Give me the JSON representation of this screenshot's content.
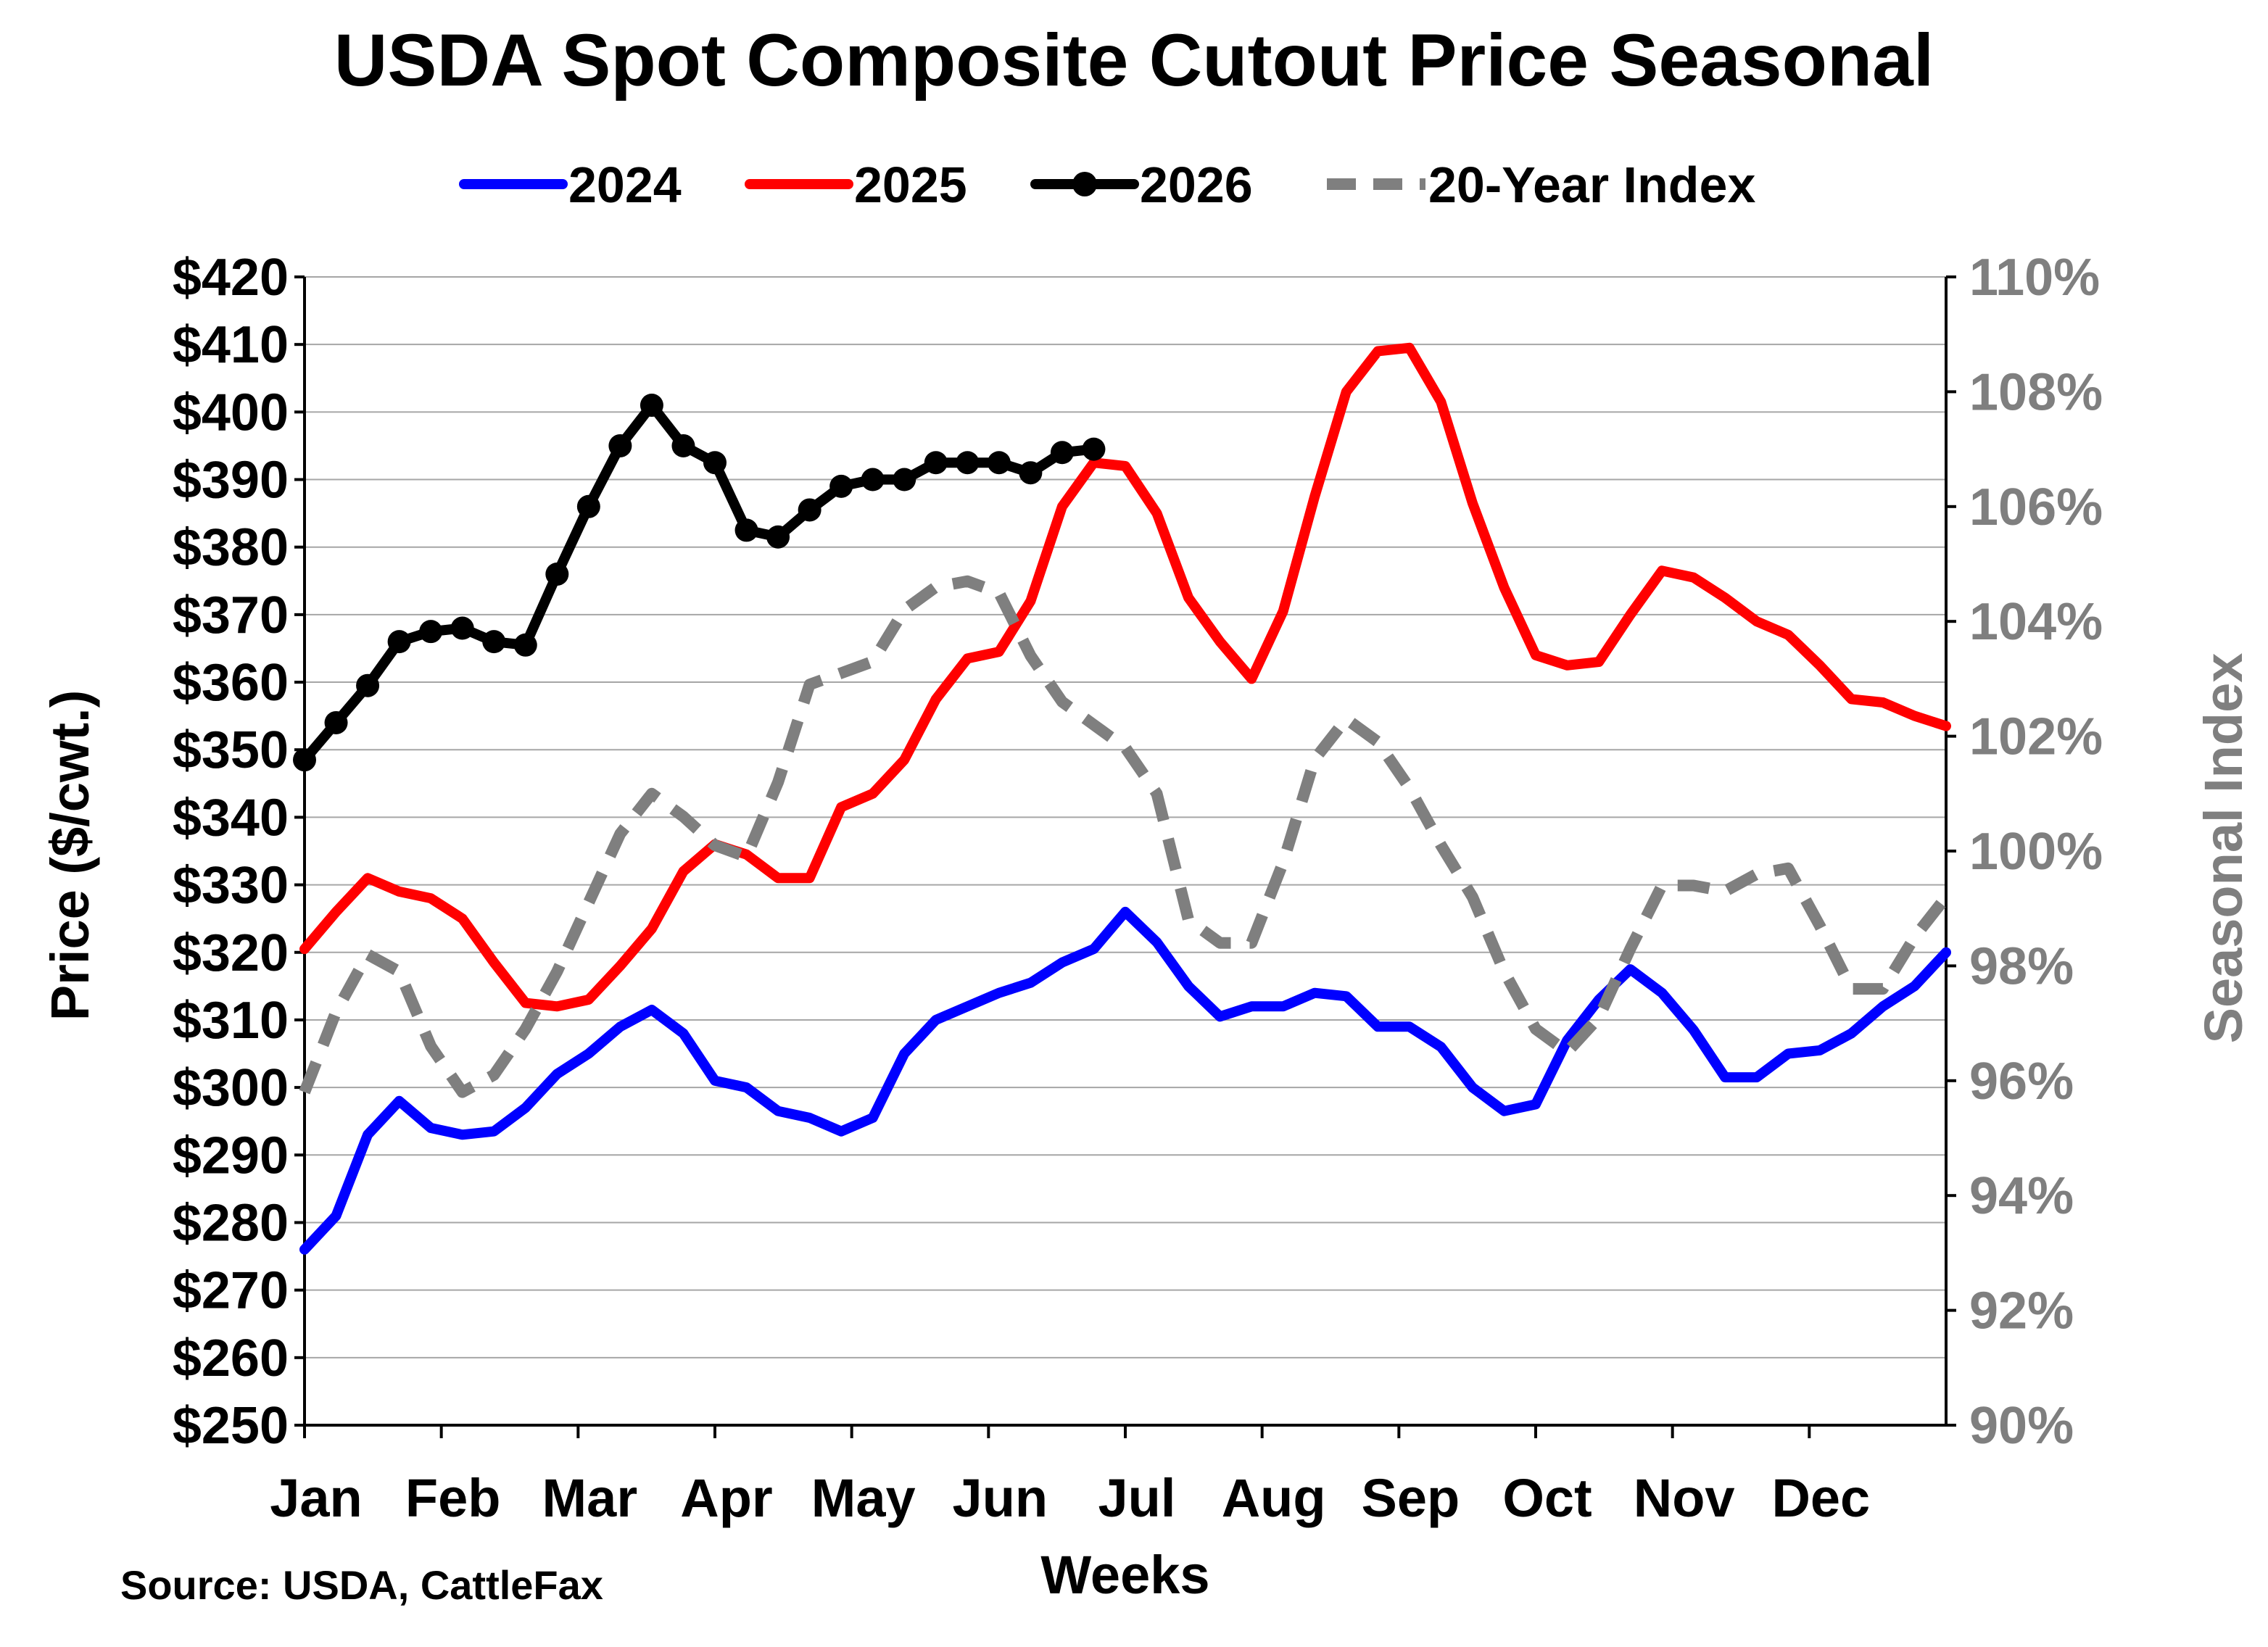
{
  "chart_data": {
    "type": "line",
    "title": "USDA Spot Composite Cutout Price Seasonal",
    "xlabel": "Weeks",
    "ylabel": "Price ($/cwt.)",
    "y2label": "Seasonal Index",
    "source": "Source: USDA, CattleFax",
    "months": [
      "Jan",
      "Feb",
      "Mar",
      "Apr",
      "May",
      "Jun",
      "Jul",
      "Aug",
      "Sep",
      "Oct",
      "Nov",
      "Dec"
    ],
    "xlim": [
      1,
      53
    ],
    "ylim": [
      250,
      420
    ],
    "y_ticks": [
      250,
      260,
      270,
      280,
      290,
      300,
      310,
      320,
      330,
      340,
      350,
      360,
      370,
      380,
      390,
      400,
      410,
      420
    ],
    "y_tick_labels": [
      "$250",
      "$260",
      "$270",
      "$280",
      "$290",
      "$300",
      "$310",
      "$320",
      "$330",
      "$340",
      "$350",
      "$360",
      "$370",
      "$380",
      "$390",
      "$400",
      "$410",
      "$420"
    ],
    "y2lim": [
      90,
      110
    ],
    "y2_ticks": [
      90,
      92,
      94,
      96,
      98,
      100,
      102,
      104,
      106,
      108,
      110
    ],
    "y2_tick_labels": [
      "90%",
      "92%",
      "94%",
      "96%",
      "98%",
      "100%",
      "102%",
      "104%",
      "106%",
      "108%",
      "110%"
    ],
    "grid": true,
    "legend_position": "top",
    "series": [
      {
        "name": "2024",
        "color": "#0000ff",
        "style": "solid",
        "axis": "left",
        "markers": false,
        "week": [
          1,
          2,
          3,
          4,
          5,
          6,
          7,
          8,
          9,
          10,
          11,
          12,
          13,
          14,
          15,
          16,
          17,
          18,
          19,
          20,
          21,
          22,
          23,
          24,
          25,
          26,
          27,
          28,
          29,
          30,
          31,
          32,
          33,
          34,
          35,
          36,
          37,
          38,
          39,
          40,
          41,
          42,
          43,
          44,
          45,
          46,
          47,
          48,
          49,
          50,
          51,
          52,
          53
        ],
        "values": [
          276,
          281,
          293,
          298,
          294,
          293,
          293.5,
          297,
          302,
          305,
          309,
          311.5,
          308,
          301,
          300,
          296.5,
          295.5,
          293.5,
          295.5,
          305,
          310,
          312,
          314,
          315.5,
          318.5,
          320.5,
          326,
          321.5,
          315,
          310.5,
          312,
          312,
          314,
          313.5,
          309,
          309,
          306,
          300,
          296.5,
          297.5,
          307,
          313,
          317.5,
          314,
          308.5,
          301.5,
          301.5,
          305,
          305.5,
          308,
          312,
          315,
          320
        ]
      },
      {
        "name": "2025",
        "color": "#ff0000",
        "style": "solid",
        "axis": "left",
        "markers": false,
        "week": [
          1,
          2,
          3,
          4,
          5,
          6,
          7,
          8,
          9,
          10,
          11,
          12,
          13,
          14,
          15,
          16,
          17,
          18,
          19,
          20,
          21,
          22,
          23,
          24,
          25,
          26,
          27,
          28,
          29,
          30,
          31,
          32,
          33,
          34,
          35,
          36,
          37,
          38,
          39,
          40,
          41,
          42,
          43,
          44,
          45,
          46,
          47,
          48,
          49,
          50,
          51,
          52,
          53
        ],
        "values": [
          320.5,
          326,
          331,
          329,
          328,
          325,
          318.5,
          312.5,
          312,
          313,
          318,
          323.5,
          332,
          336,
          334.5,
          331,
          331,
          341.5,
          343.5,
          348.5,
          357.5,
          363.5,
          364.5,
          372,
          386,
          392.5,
          392,
          385,
          372.5,
          366,
          360.5,
          370.5,
          387.5,
          403,
          409,
          409.5,
          401.5,
          386.5,
          374,
          364,
          362.5,
          363,
          370,
          376.5,
          375.5,
          372.5,
          369,
          367,
          362.5,
          357.5,
          357,
          355,
          353.5
        ]
      },
      {
        "name": "2026",
        "color": "#000000",
        "style": "solid",
        "axis": "left",
        "markers": true,
        "week": [
          1,
          2,
          3,
          4,
          5,
          6,
          7,
          8,
          9,
          10,
          11,
          12,
          13,
          14,
          15,
          16,
          17,
          18,
          19,
          20,
          21,
          22,
          23,
          24,
          25,
          26
        ],
        "values": [
          348.5,
          354,
          359.5,
          366,
          367.5,
          368,
          366,
          365.5,
          376,
          386,
          395,
          401,
          395,
          392.5,
          382.5,
          381.5,
          385.5,
          389,
          390,
          390,
          392.5,
          392.5,
          392.5,
          391,
          394,
          394.5
        ]
      },
      {
        "name": "20-Year Index",
        "color": "#7f7f7f",
        "style": "dashed",
        "axis": "right",
        "markers": false,
        "week": [
          1,
          2,
          3,
          4,
          5,
          6,
          7,
          8,
          9,
          10,
          11,
          12,
          13,
          14,
          15,
          16,
          17,
          18,
          19,
          20,
          21,
          22,
          23,
          24,
          25,
          26,
          27,
          28,
          29,
          30,
          31,
          32,
          33,
          34,
          35,
          36,
          37,
          38,
          39,
          40,
          41,
          42,
          43,
          44,
          45,
          46,
          47,
          48,
          49,
          50,
          51,
          52,
          53
        ],
        "values": [
          95.8,
          97.2,
          98.2,
          97.9,
          96.6,
          95.8,
          96.1,
          96.9,
          97.9,
          99.1,
          100.3,
          101,
          100.6,
          100.1,
          99.9,
          101.2,
          102.9,
          103.1,
          103.3,
          104.2,
          104.6,
          104.7,
          104.5,
          103.4,
          102.6,
          102.2,
          101.8,
          101,
          98.8,
          98.4,
          98.4,
          99.8,
          101.6,
          102.3,
          101.9,
          101.1,
          100.1,
          99.2,
          97.9,
          96.9,
          96.5,
          97.1,
          98.3,
          99.4,
          99.4,
          99.3,
          99.6,
          99.7,
          98.7,
          97.6,
          97.6,
          98.5,
          99.2
        ]
      }
    ]
  }
}
